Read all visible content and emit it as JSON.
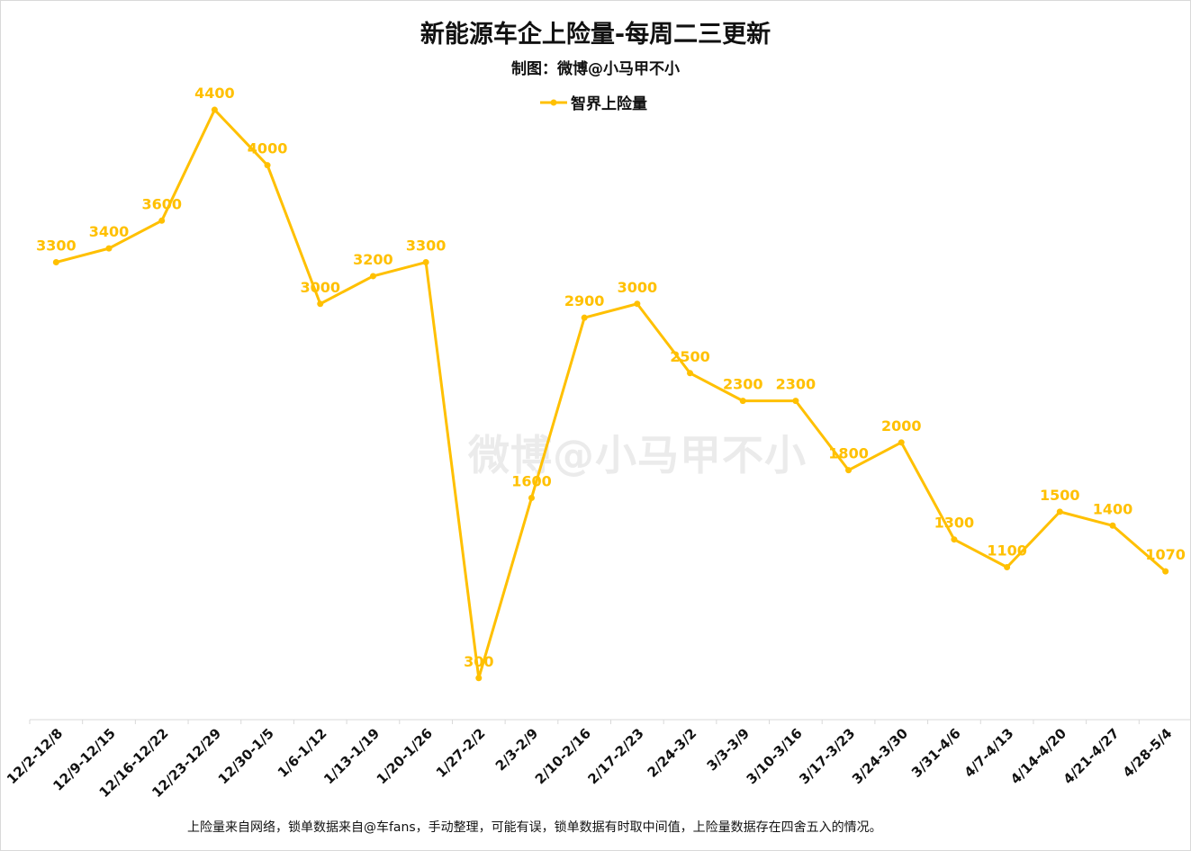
{
  "chart_data": {
    "type": "line",
    "title": "新能源车企上险量-每周二三更新",
    "subtitle": "制图：微博@小马甲不小",
    "categories": [
      "12/2-12/8",
      "12/9-12/15",
      "12/16-12/22",
      "12/23-12/29",
      "12/30-1/5",
      "1/6-1/12",
      "1/13-1/19",
      "1/20-1/26",
      "1/27-2/2",
      "2/3-2/9",
      "2/10-2/16",
      "2/17-2/23",
      "2/24-3/2",
      "3/3-3/9",
      "3/10-3/16",
      "3/17-3/23",
      "3/24-3/30",
      "3/31-4/6",
      "4/7-4/13",
      "4/14-4/20",
      "4/21-4/27",
      "4/28-5/4"
    ],
    "series": [
      {
        "name": "智界上险量",
        "color": "#FFC000",
        "values": [
          3300,
          3400,
          3600,
          4400,
          4000,
          3000,
          3200,
          3300,
          300,
          1600,
          2900,
          3000,
          2500,
          2300,
          2300,
          1800,
          2000,
          1300,
          1100,
          1500,
          1400,
          1070
        ]
      }
    ],
    "xlabel": "",
    "ylabel": "",
    "ylim": [
      0,
      4900
    ],
    "grid": false,
    "legend_position": "top-center",
    "data_labels": true
  },
  "footnote": "上险量来自网络，锁单数据来自@车fans，手动整理，可能有误，锁单数据有时取中间值，上险量数据存在四舍五入的情况。",
  "watermark": "微博@小马甲不小"
}
